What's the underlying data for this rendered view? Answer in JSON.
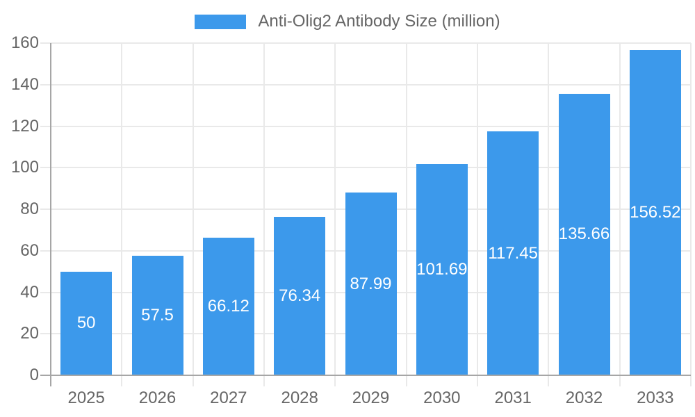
{
  "chart_data": {
    "type": "bar",
    "title": "Anti-Olig2 Antibody Size (million)",
    "categories": [
      "2025",
      "2026",
      "2027",
      "2028",
      "2029",
      "2030",
      "2031",
      "2032",
      "2033"
    ],
    "values": [
      50,
      57.5,
      66.12,
      76.34,
      87.99,
      101.69,
      117.45,
      135.66,
      156.52
    ],
    "value_labels": [
      "50",
      "57.5",
      "66.12",
      "76.34",
      "87.99",
      "101.69",
      "117.45",
      "135.66",
      "156.52"
    ],
    "xlabel": "",
    "ylabel": "",
    "ylim": [
      0,
      160
    ],
    "ytick_step": 20,
    "yticks": [
      0,
      20,
      40,
      60,
      80,
      100,
      120,
      140,
      160
    ],
    "grid": true,
    "legend_position": "top",
    "value_label_position": "center-of-bar",
    "colors": {
      "bar": "#3C99EB",
      "grid": "#E9E9E9",
      "axis": "#A6A6A6",
      "text": "#666666",
      "value_text": "#FFFFFF",
      "background": "#FFFFFF"
    }
  }
}
